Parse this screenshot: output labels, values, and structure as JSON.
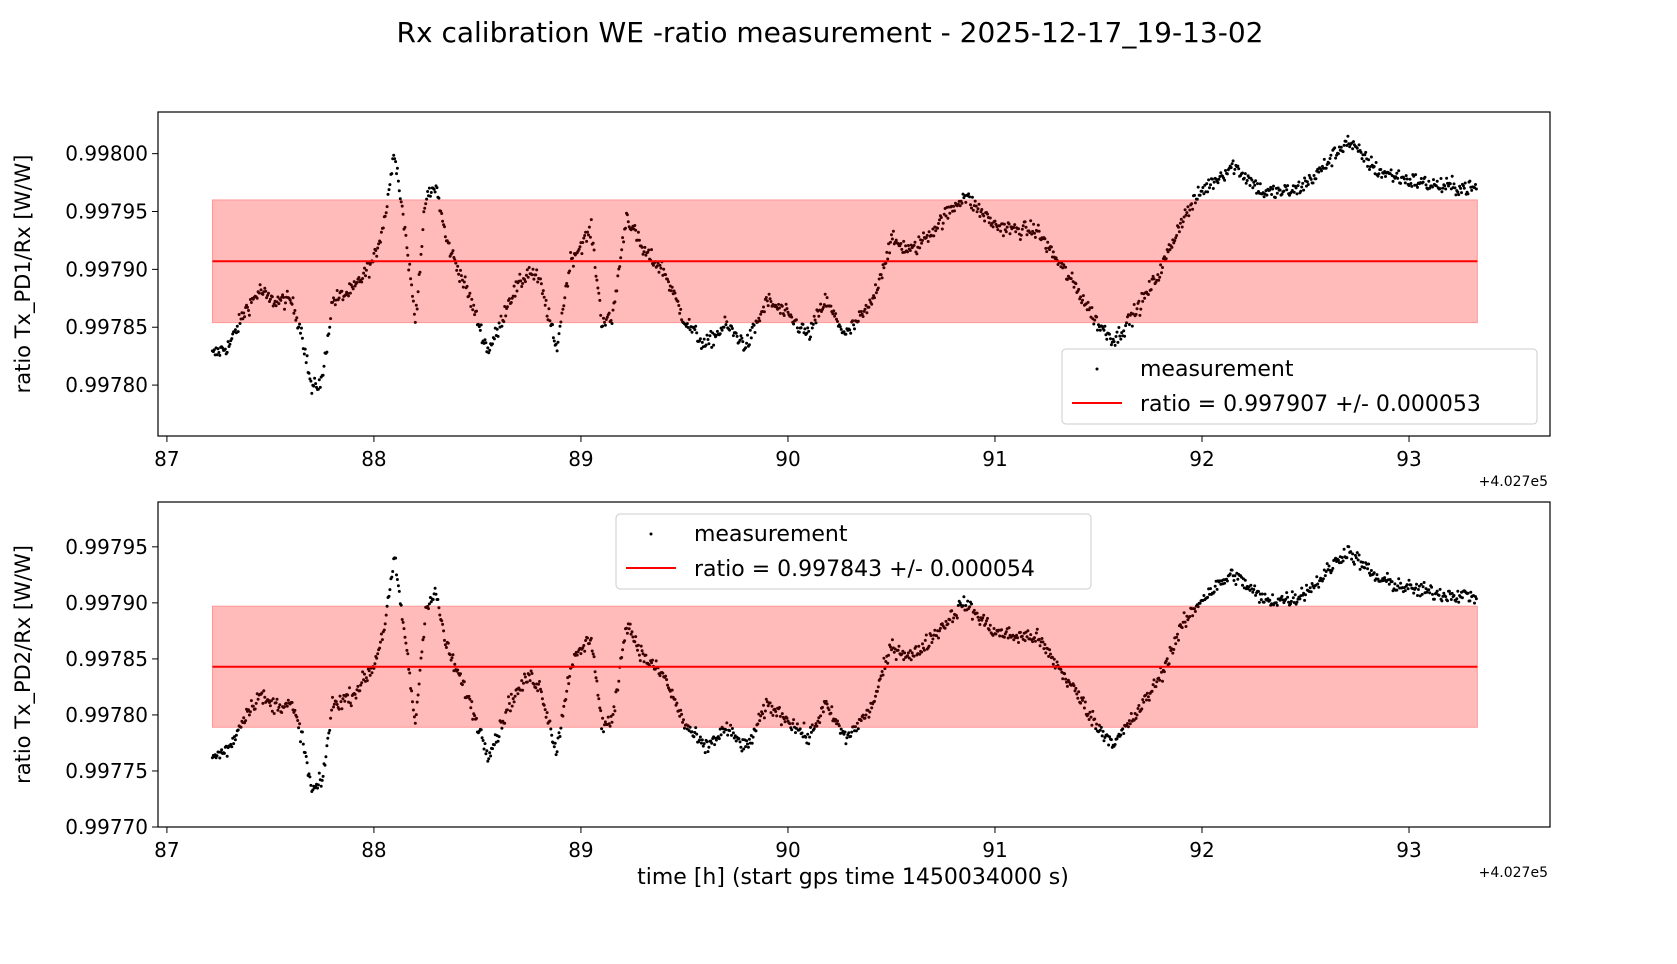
{
  "title": "Rx calibration WE -ratio measurement - 2025-12-17_19-13-02",
  "chart_data": [
    {
      "type": "scatter",
      "ylabel": "ratio Tx_PD1/Rx [W/W]",
      "xlabel": "",
      "x_offset_label": "+4.027e5",
      "xlim": [
        86.957,
        93.681
      ],
      "ylim": [
        0.997756,
        0.998036
      ],
      "xticks": [
        "87",
        "88",
        "89",
        "90",
        "91",
        "92",
        "93"
      ],
      "yticks": [
        "0.99780",
        "0.99785",
        "0.99790",
        "0.99795",
        "0.99800"
      ],
      "grid": false,
      "legend_position": "lower-right",
      "legend": {
        "measurement": "measurement",
        "ratio": "ratio = 0.997907 +/- 0.000053"
      },
      "ratio": 0.997907,
      "ratio_err": 5.3e-05,
      "x_range": [
        87.22,
        93.33
      ],
      "colors": {
        "points": "#000000",
        "line": "#ff0000",
        "band": "#ffb3b3"
      },
      "series": {
        "x": [
          87.22,
          87.3,
          87.38,
          87.45,
          87.5,
          87.6,
          87.65,
          87.7,
          87.75,
          87.8,
          87.9,
          88.0,
          88.05,
          88.1,
          88.15,
          88.2,
          88.25,
          88.3,
          88.35,
          88.45,
          88.55,
          88.6,
          88.65,
          88.75,
          88.8,
          88.85,
          88.88,
          88.95,
          89.05,
          89.1,
          89.15,
          89.22,
          89.3,
          89.4,
          89.5,
          89.6,
          89.7,
          89.8,
          89.9,
          90.0,
          90.1,
          90.18,
          90.28,
          90.4,
          90.5,
          90.6,
          90.7,
          90.85,
          91.0,
          91.1,
          91.2,
          91.3,
          91.4,
          91.5,
          91.58,
          91.7,
          91.8,
          91.9,
          92.0,
          92.15,
          92.3,
          92.45,
          92.55,
          92.7,
          92.85,
          93.0,
          93.15,
          93.33
        ],
        "y": [
          0.997826,
          0.997834,
          0.997865,
          0.997882,
          0.997873,
          0.997873,
          0.997847,
          0.997796,
          0.997804,
          0.997873,
          0.997882,
          0.997908,
          0.997942,
          0.998003,
          0.997934,
          0.997856,
          0.99796,
          0.997972,
          0.997925,
          0.997882,
          0.99783,
          0.997847,
          0.997873,
          0.997899,
          0.99789,
          0.997856,
          0.99783,
          0.997908,
          0.997934,
          0.997856,
          0.997856,
          0.997947,
          0.997916,
          0.997899,
          0.997856,
          0.997834,
          0.997852,
          0.997834,
          0.997873,
          0.99786,
          0.997843,
          0.997873,
          0.997843,
          0.997869,
          0.997925,
          0.997916,
          0.997934,
          0.997964,
          0.997938,
          0.997934,
          0.997934,
          0.997908,
          0.997882,
          0.997852,
          0.997839,
          0.997869,
          0.997899,
          0.997942,
          0.997968,
          0.99799,
          0.997966,
          0.997968,
          0.997981,
          0.998011,
          0.997985,
          0.997977,
          0.997972,
          0.99797
        ]
      }
    },
    {
      "type": "scatter",
      "ylabel": "ratio Tx_PD2/Rx [W/W]",
      "xlabel": "time [h] (start gps time 1450034000 s)",
      "x_offset_label": "+4.027e5",
      "xlim": [
        86.957,
        93.681
      ],
      "ylim": [
        0.9977,
        0.99799
      ],
      "xticks": [
        "87",
        "88",
        "89",
        "90",
        "91",
        "92",
        "93"
      ],
      "yticks": [
        "0.99770",
        "0.99775",
        "0.99780",
        "0.99785",
        "0.99790",
        "0.99795"
      ],
      "grid": false,
      "legend_position": "upper-center",
      "legend": {
        "measurement": "measurement",
        "ratio": "ratio = 0.997843 +/- 0.000054"
      },
      "ratio": 0.997843,
      "ratio_err": 5.4e-05,
      "x_range": [
        87.22,
        93.33
      ],
      "colors": {
        "points": "#000000",
        "line": "#ff0000",
        "band": "#ffb3b3"
      },
      "series": {
        "x": [
          87.22,
          87.3,
          87.38,
          87.45,
          87.5,
          87.6,
          87.65,
          87.7,
          87.75,
          87.8,
          87.9,
          88.0,
          88.05,
          88.1,
          88.15,
          88.2,
          88.25,
          88.3,
          88.35,
          88.45,
          88.55,
          88.6,
          88.65,
          88.75,
          88.8,
          88.85,
          88.88,
          88.95,
          89.05,
          89.1,
          89.15,
          89.22,
          89.3,
          89.4,
          89.5,
          89.6,
          89.7,
          89.8,
          89.9,
          90.0,
          90.1,
          90.18,
          90.28,
          90.4,
          90.5,
          90.6,
          90.7,
          90.85,
          91.0,
          91.1,
          91.2,
          91.3,
          91.4,
          91.5,
          91.58,
          91.7,
          91.8,
          91.9,
          92.0,
          92.15,
          92.3,
          92.45,
          92.55,
          92.7,
          92.85,
          93.0,
          93.15,
          93.33
        ],
        "y": [
          0.997762,
          0.99777,
          0.997801,
          0.997818,
          0.997809,
          0.997809,
          0.997783,
          0.997732,
          0.99774,
          0.997809,
          0.997818,
          0.997844,
          0.997878,
          0.997939,
          0.99787,
          0.997792,
          0.997896,
          0.997908,
          0.997861,
          0.997818,
          0.997766,
          0.997783,
          0.997809,
          0.997835,
          0.997826,
          0.997792,
          0.997766,
          0.997844,
          0.99787,
          0.997792,
          0.997792,
          0.997883,
          0.997852,
          0.997835,
          0.997792,
          0.99777,
          0.997788,
          0.99777,
          0.997809,
          0.997796,
          0.997779,
          0.997809,
          0.997779,
          0.997805,
          0.997861,
          0.997852,
          0.99787,
          0.9979,
          0.997874,
          0.99787,
          0.99787,
          0.997844,
          0.997818,
          0.997788,
          0.997775,
          0.997805,
          0.997835,
          0.997878,
          0.997904,
          0.997926,
          0.997902,
          0.997904,
          0.997917,
          0.997947,
          0.997921,
          0.997913,
          0.997908,
          0.997906
        ]
      }
    }
  ]
}
